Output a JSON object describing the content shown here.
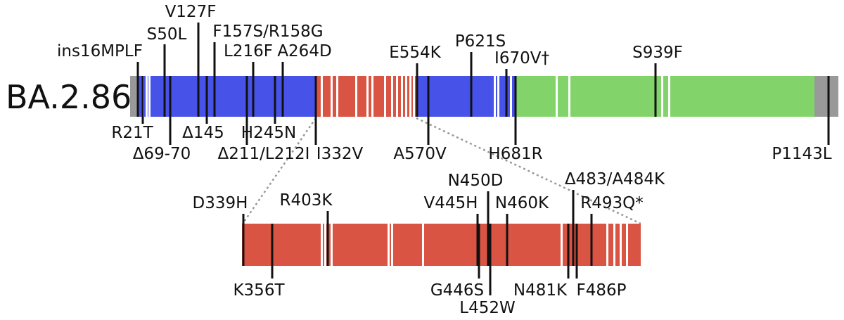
{
  "title": "BA.2.86",
  "mutations": [
    {
      "label": "ins16MPLF"
    },
    {
      "label": "S50L"
    },
    {
      "label": "V127F"
    },
    {
      "label": "F157S/R158G"
    },
    {
      "label": "L216F"
    },
    {
      "label": "A264D"
    },
    {
      "label": "E554K"
    },
    {
      "label": "P621S"
    },
    {
      "label": "I670V†"
    },
    {
      "label": "S939F"
    },
    {
      "label": "R21T"
    },
    {
      "label": "Δ69-70"
    },
    {
      "label": "Δ145"
    },
    {
      "label": "Δ211/L212I"
    },
    {
      "label": "H245N"
    },
    {
      "label": "I332V"
    },
    {
      "label": "A570V"
    },
    {
      "label": "H681R"
    },
    {
      "label": "P1143L"
    }
  ],
  "rbd_mutations": [
    {
      "label": "D339H"
    },
    {
      "label": "R403K"
    },
    {
      "label": "N450D"
    },
    {
      "label": "V445H"
    },
    {
      "label": "N460K"
    },
    {
      "label": "Δ483/A484K"
    },
    {
      "label": "R493Q*"
    },
    {
      "label": "K356T"
    },
    {
      "label": "G446S"
    },
    {
      "label": "L452W"
    },
    {
      "label": "N481K"
    },
    {
      "label": "F486P"
    }
  ]
}
